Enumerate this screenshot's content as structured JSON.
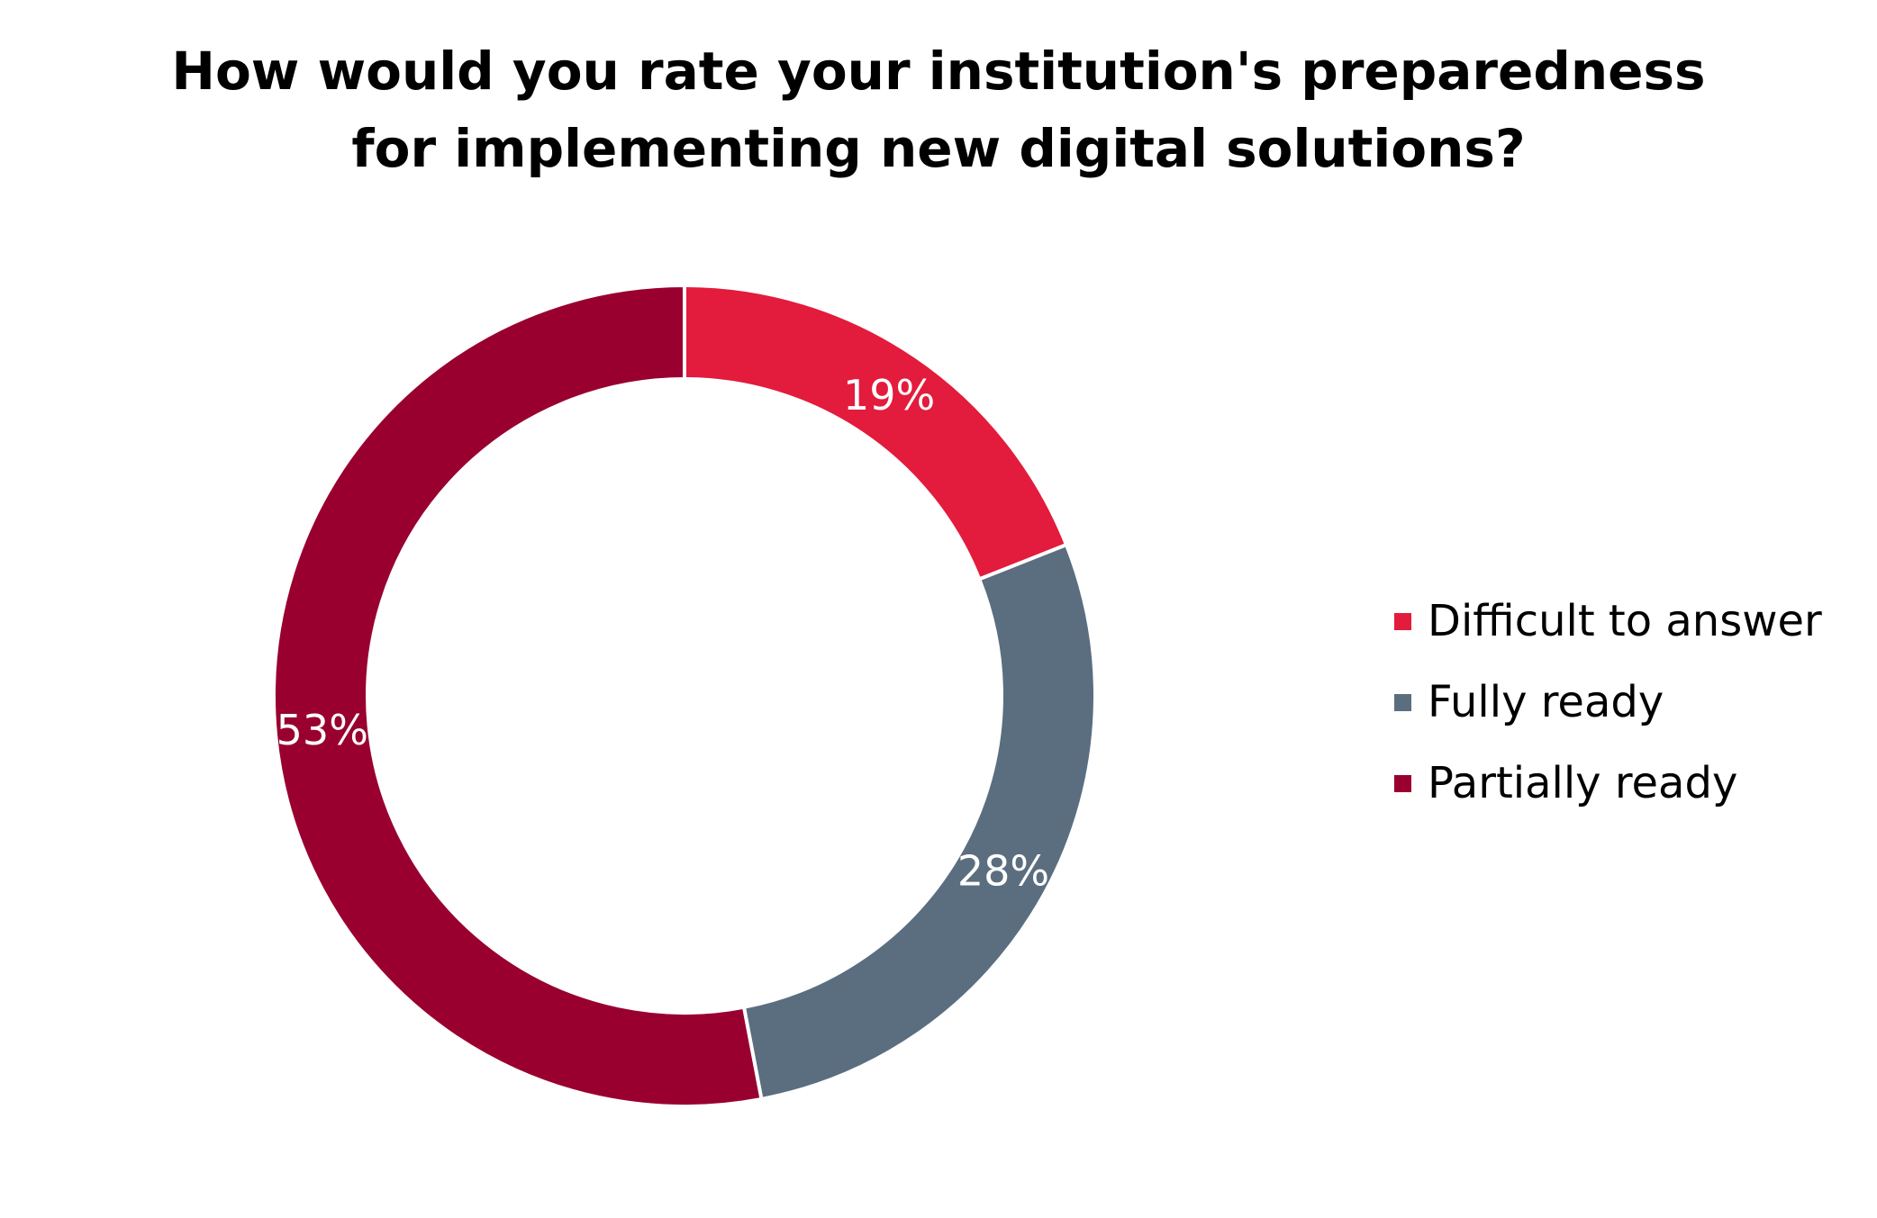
{
  "chart_data": {
    "type": "pie",
    "subtype": "donut",
    "title": "How would you rate your institution's preparedness for implementing new digital solutions?",
    "title_lines": [
      "How would you rate your institution's preparedness",
      "for implementing new digital solutions?"
    ],
    "slices": [
      {
        "label": "Difficult to answer",
        "value": 19,
        "display": "19%",
        "color": "#E31B3C"
      },
      {
        "label": "Fully ready",
        "value": 28,
        "display": "28%",
        "color": "#5B6E80"
      },
      {
        "label": "Partially ready",
        "value": 53,
        "display": "53%",
        "color": "#990030"
      }
    ],
    "legend_position": "right",
    "start_angle": "top",
    "direction": "clockwise",
    "separator_color": "#FFFFFF"
  }
}
